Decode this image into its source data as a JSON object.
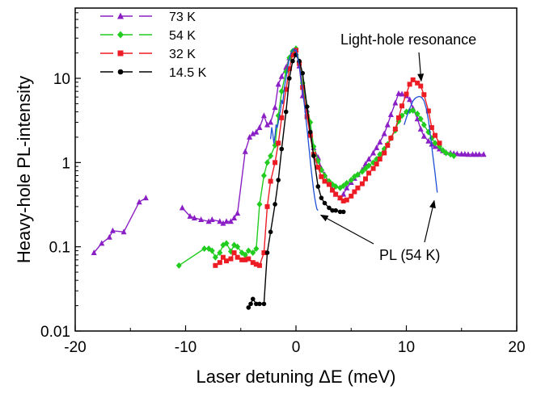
{
  "chart_data": {
    "type": "line",
    "title": "",
    "xlabel": "Laser detuning ΔE (meV)",
    "ylabel": "Heavy-hole PL-intensity",
    "xlim": [
      -20,
      20
    ],
    "ylim": [
      0.01,
      30
    ],
    "yscale": "log",
    "grid": false,
    "legend_position": "top-left",
    "x_ticks": [
      -20,
      -10,
      0,
      10,
      20
    ],
    "x_tick_labels": [
      "-20",
      "-10",
      "0",
      "10",
      "20"
    ],
    "y_ticks": [
      0.01,
      0.1,
      1,
      10
    ],
    "y_tick_labels": [
      "0.01",
      "0.1",
      "1",
      "10"
    ],
    "series": [
      {
        "name": "73 K",
        "color": "#8B1FC6",
        "marker": "triangle",
        "x": [
          -18.3,
          -17.6,
          -16.9,
          -16.6,
          -15.6,
          -14.2,
          -13.6,
          -10.3,
          -9.6,
          -9.2,
          -8.6,
          -7.9,
          -7.6,
          -6.9,
          -6.6,
          -6.3,
          -5.9,
          -5.6,
          -5.3,
          -4.6,
          -4.2,
          -3.9,
          -3.6,
          -3.3,
          -2.9,
          -2.6,
          -2.3,
          -1.9,
          -1.6,
          -1.3,
          -0.9,
          -0.6,
          -0.3,
          0,
          0.3,
          0.6,
          1.0,
          1.3,
          1.6,
          2.0,
          2.3,
          2.6,
          3.0,
          3.3,
          3.6,
          4.0,
          4.3,
          4.6,
          5.0,
          5.3,
          5.6,
          6.0,
          6.3,
          6.6,
          7.0,
          7.3,
          7.6,
          8.0,
          8.3,
          8.6,
          9.0,
          9.3,
          9.6,
          10.0,
          10.3,
          10.6,
          11.0,
          11.3,
          11.6,
          12.0,
          12.3,
          12.6,
          13.0,
          13.3,
          13.6,
          14.0,
          14.3,
          14.6,
          15.0,
          15.3,
          15.6,
          16.0,
          16.3,
          16.6,
          17.0
        ],
        "y": [
          0.085,
          0.11,
          0.13,
          0.155,
          0.15,
          0.34,
          0.38,
          0.29,
          0.23,
          0.22,
          0.21,
          0.2,
          0.21,
          0.2,
          0.19,
          0.2,
          0.2,
          0.22,
          0.25,
          1.35,
          2.0,
          2.2,
          2.3,
          2.6,
          3.6,
          2.8,
          3.0,
          4.5,
          8.5,
          10.5,
          13.5,
          17.5,
          20.5,
          22.0,
          14.0,
          6.2,
          4.2,
          2.2,
          1.5,
          1.15,
          0.85,
          0.72,
          0.58,
          0.48,
          0.42,
          0.38,
          0.42,
          0.5,
          0.58,
          0.65,
          0.72,
          0.82,
          0.96,
          1.1,
          1.3,
          1.5,
          1.75,
          2.2,
          2.8,
          3.7,
          5.1,
          6.6,
          6.5,
          6.2,
          5.6,
          4.4,
          3.3,
          2.5,
          2.05,
          1.8,
          1.65,
          1.55,
          1.45,
          1.38,
          1.32,
          1.3,
          1.28,
          1.27,
          1.26,
          1.26,
          1.25,
          1.25,
          1.25,
          1.25,
          1.25
        ]
      },
      {
        "name": "54 K",
        "color": "#21CC1F",
        "marker": "diamond",
        "x": [
          -10.6,
          -8.3,
          -7.9,
          -7.6,
          -7.3,
          -6.9,
          -6.6,
          -6.3,
          -5.9,
          -5.6,
          -5.3,
          -4.9,
          -4.6,
          -4.3,
          -3.9,
          -3.6,
          -3.3,
          -2.9,
          -2.6,
          -2.3,
          -1.9,
          -1.6,
          -1.3,
          -0.9,
          -0.6,
          -0.3,
          0,
          0.3,
          0.6,
          1.0,
          1.3,
          1.6,
          2.0,
          2.3,
          2.6,
          3.0,
          3.3,
          3.6,
          4.0,
          4.3,
          4.6,
          5.0,
          5.3,
          5.6,
          6.0,
          6.3,
          6.6,
          7.0,
          7.3,
          7.6,
          8.0,
          8.3,
          8.6,
          9.0,
          9.3,
          9.6,
          10.0,
          10.3,
          10.6,
          11.0,
          11.3,
          11.6,
          12.0,
          12.3,
          12.6,
          13.0,
          13.3,
          13.6,
          14.0,
          14.3
        ],
        "y": [
          0.06,
          0.095,
          0.095,
          0.09,
          0.075,
          0.085,
          0.105,
          0.11,
          0.088,
          0.105,
          0.1,
          0.085,
          0.08,
          0.09,
          0.085,
          0.095,
          0.32,
          0.7,
          1.0,
          1.2,
          1.6,
          3.6,
          7.0,
          12.0,
          17.5,
          21.0,
          22.5,
          15.5,
          8.8,
          4.6,
          3.0,
          1.55,
          1.05,
          0.82,
          0.7,
          0.6,
          0.55,
          0.52,
          0.5,
          0.53,
          0.57,
          0.62,
          0.68,
          0.72,
          0.78,
          0.85,
          0.92,
          1.0,
          1.1,
          1.25,
          1.45,
          1.65,
          1.95,
          2.4,
          3.1,
          3.6,
          4.0,
          4.1,
          4.15,
          3.8,
          3.3,
          2.8,
          2.3,
          1.95,
          1.7,
          1.55,
          1.4,
          1.3,
          1.25,
          1.2
        ]
      },
      {
        "name": "32 K",
        "color": "#ED1C24",
        "marker": "square",
        "x": [
          -7.3,
          -6.9,
          -6.6,
          -6.3,
          -5.9,
          -5.6,
          -5.3,
          -4.9,
          -4.6,
          -4.3,
          -3.9,
          -3.6,
          -3.3,
          -2.9,
          -2.6,
          -2.3,
          -1.9,
          -1.6,
          -1.3,
          -0.9,
          -0.6,
          -0.3,
          0,
          0.3,
          0.6,
          1.0,
          1.3,
          1.6,
          2.0,
          2.3,
          2.6,
          3.0,
          3.3,
          3.6,
          4.0,
          4.3,
          4.6,
          5.0,
          5.3,
          5.6,
          6.0,
          6.3,
          6.6,
          7.0,
          7.3,
          7.6,
          8.0,
          8.3,
          8.6,
          9.0,
          9.3,
          9.6,
          10.0,
          10.3,
          10.6,
          11.0,
          11.3,
          11.6,
          12.0,
          12.3,
          12.6,
          13.0
        ],
        "y": [
          0.06,
          0.065,
          0.075,
          0.068,
          0.072,
          0.085,
          0.075,
          0.07,
          0.07,
          0.072,
          0.065,
          0.062,
          0.06,
          0.085,
          0.3,
          0.6,
          1.0,
          1.7,
          3.4,
          7.4,
          13.0,
          19.0,
          21.5,
          15.0,
          7.8,
          3.5,
          2.1,
          1.25,
          0.88,
          0.68,
          0.6,
          0.55,
          0.47,
          0.42,
          0.38,
          0.35,
          0.36,
          0.4,
          0.45,
          0.5,
          0.56,
          0.64,
          0.75,
          0.85,
          0.96,
          1.1,
          1.3,
          1.6,
          1.95,
          2.5,
          3.4,
          4.7,
          6.5,
          8.5,
          9.6,
          8.8,
          8.1,
          6.4,
          4.1,
          2.6,
          2.1,
          1.7
        ]
      },
      {
        "name": "14.5 K",
        "color": "#000000",
        "marker": "circle",
        "x": [
          -4.3,
          -4.1,
          -3.9,
          -3.6,
          -3.3,
          -2.9,
          -2.6,
          -2.3,
          -1.9,
          -1.6,
          -1.3,
          -0.9,
          -0.6,
          -0.3,
          0,
          0.3,
          0.6,
          1.0,
          1.3,
          1.6,
          2.0,
          2.3,
          2.6,
          3.0,
          3.3,
          3.6,
          4.0,
          4.3
        ],
        "y": [
          0.019,
          0.021,
          0.024,
          0.021,
          0.021,
          0.021,
          0.085,
          0.15,
          0.32,
          0.62,
          1.45,
          4.0,
          10.0,
          16.0,
          19.0,
          16.0,
          11.5,
          4.6,
          2.3,
          1.2,
          0.52,
          0.38,
          0.33,
          0.29,
          0.27,
          0.27,
          0.26,
          0.26
        ]
      },
      {
        "name": "PL (54 K)",
        "color": "#1F4FD6",
        "marker": "none",
        "x": [
          -2.3,
          -2.2,
          -2.1,
          -2.0,
          -1.9,
          -1.8,
          -1.7,
          -1.6,
          -1.5,
          -1.4,
          -1.3,
          -1.2,
          -1.1,
          -1.0,
          -0.9,
          -0.8,
          -0.7,
          -0.6,
          -0.5,
          -0.4,
          -0.3,
          -0.2,
          -0.1,
          0,
          0.1,
          0.2,
          0.3,
          0.4,
          0.5,
          0.6,
          0.7,
          0.8,
          0.9,
          1.0,
          1.1,
          1.2,
          1.3,
          1.4,
          1.5,
          1.6,
          1.7,
          1.8,
          1.9,
          2.0,
          9.8,
          10.0,
          10.2,
          10.4,
          10.6,
          10.8,
          11.0,
          11.2,
          11.4,
          11.6,
          11.8,
          12.0,
          12.2,
          12.4,
          12.6,
          12.8
        ],
        "y": [
          1.9,
          2.6,
          2.2,
          1.7,
          2.1,
          2.8,
          2.6,
          3.0,
          3.6,
          4.2,
          5.5,
          5.0,
          6.8,
          8.5,
          10.0,
          12.5,
          14.5,
          17.0,
          19.0,
          20.5,
          21.5,
          22.5,
          21.0,
          22.0,
          19.0,
          16.5,
          14.0,
          11.5,
          9.0,
          7.2,
          5.6,
          4.4,
          3.3,
          2.5,
          1.9,
          1.4,
          1.05,
          0.78,
          0.6,
          0.47,
          0.38,
          0.32,
          0.28,
          0.27,
          2.8,
          3.4,
          4.0,
          4.7,
          5.4,
          5.8,
          6.0,
          6.1,
          5.9,
          5.4,
          4.4,
          3.2,
          2.0,
          1.2,
          0.75,
          0.44
        ]
      }
    ],
    "annotations": [
      {
        "text": "Light-hole resonance",
        "arrow_to": [
          11.2,
          8.5
        ]
      },
      {
        "text": "PL (54 K)",
        "arrow_to": [
          2.1,
          0.26
        ],
        "arrow_to_2": [
          12.6,
          0.44
        ]
      }
    ]
  }
}
